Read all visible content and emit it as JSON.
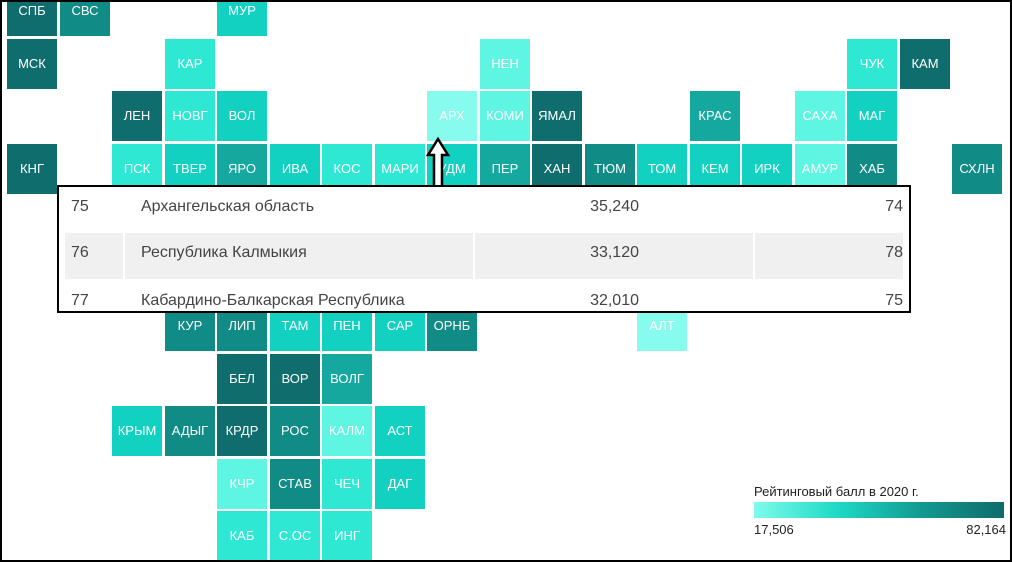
{
  "colors": {
    "very_light": "#86fbee",
    "light": "#5ef5e2",
    "aqua": "#2ee8d4",
    "mid": "#12d1c0",
    "teal": "#14a89f",
    "dark": "#108b86",
    "darkest": "#0f6e6d"
  },
  "regions": [
    {
      "label": "СПБ",
      "col": 0,
      "row": 0,
      "shade": "darkest"
    },
    {
      "label": "СВС",
      "col": 1,
      "row": 0,
      "shade": "dark"
    },
    {
      "label": "МУР",
      "col": 4,
      "row": 0,
      "shade": "mid"
    },
    {
      "label": "МСК",
      "col": 0,
      "row": 1,
      "shade": "darkest"
    },
    {
      "label": "КАР",
      "col": 3,
      "row": 1,
      "shade": "aqua"
    },
    {
      "label": "НЕН",
      "col": 9,
      "row": 1,
      "shade": "light"
    },
    {
      "label": "ЧУК",
      "col": 16,
      "row": 1,
      "shade": "aqua"
    },
    {
      "label": "КАМ",
      "col": 17,
      "row": 1,
      "shade": "darkest"
    },
    {
      "label": "ЛЕН",
      "col": 2,
      "row": 2,
      "shade": "darkest"
    },
    {
      "label": "НОВГ",
      "col": 3,
      "row": 2,
      "shade": "aqua"
    },
    {
      "label": "ВОЛ",
      "col": 4,
      "row": 2,
      "shade": "mid"
    },
    {
      "label": "АРХ",
      "col": 8,
      "row": 2,
      "shade": "very_light"
    },
    {
      "label": "КОМИ",
      "col": 9,
      "row": 2,
      "shade": "light"
    },
    {
      "label": "ЯМАЛ",
      "col": 10,
      "row": 2,
      "shade": "darkest"
    },
    {
      "label": "КРАС",
      "col": 13,
      "row": 2,
      "shade": "teal"
    },
    {
      "label": "САХА",
      "col": 15,
      "row": 2,
      "shade": "light"
    },
    {
      "label": "МАГ",
      "col": 16,
      "row": 2,
      "shade": "mid"
    },
    {
      "label": "КНГ",
      "col": 0,
      "row": 3,
      "shade": "darkest"
    },
    {
      "label": "ПСК",
      "col": 2,
      "row": 3,
      "shade": "aqua"
    },
    {
      "label": "ТВЕР",
      "col": 3,
      "row": 3,
      "shade": "mid"
    },
    {
      "label": "ЯРО",
      "col": 4,
      "row": 3,
      "shade": "teal"
    },
    {
      "label": "ИВА",
      "col": 5,
      "row": 3,
      "shade": "mid"
    },
    {
      "label": "КОС",
      "col": 6,
      "row": 3,
      "shade": "aqua"
    },
    {
      "label": "МАРИ",
      "col": 7,
      "row": 3,
      "shade": "aqua"
    },
    {
      "label": "УДМ",
      "col": 8,
      "row": 3,
      "shade": "mid"
    },
    {
      "label": "ПЕР",
      "col": 9,
      "row": 3,
      "shade": "teal"
    },
    {
      "label": "ХАН",
      "col": 10,
      "row": 3,
      "shade": "darkest"
    },
    {
      "label": "ТЮМ",
      "col": 11,
      "row": 3,
      "shade": "dark"
    },
    {
      "label": "ТОМ",
      "col": 12,
      "row": 3,
      "shade": "mid"
    },
    {
      "label": "КЕМ",
      "col": 13,
      "row": 3,
      "shade": "mid"
    },
    {
      "label": "ИРК",
      "col": 14,
      "row": 3,
      "shade": "mid"
    },
    {
      "label": "АМУР",
      "col": 15,
      "row": 3,
      "shade": "light"
    },
    {
      "label": "ХАБ",
      "col": 16,
      "row": 3,
      "shade": "dark"
    },
    {
      "label": "СХЛН",
      "col": 18,
      "row": 3,
      "shade": "dark"
    },
    {
      "label": "КУР",
      "col": 3,
      "row": 6,
      "shade": "dark"
    },
    {
      "label": "ЛИП",
      "col": 4,
      "row": 6,
      "shade": "dark"
    },
    {
      "label": "ТАМ",
      "col": 5,
      "row": 6,
      "shade": "mid"
    },
    {
      "label": "ПЕН",
      "col": 6,
      "row": 6,
      "shade": "mid"
    },
    {
      "label": "САР",
      "col": 7,
      "row": 6,
      "shade": "mid"
    },
    {
      "label": "ОРНБ",
      "col": 8,
      "row": 6,
      "shade": "dark"
    },
    {
      "label": "АЛТ",
      "col": 12,
      "row": 6,
      "shade": "very_light"
    },
    {
      "label": "БЕЛ",
      "col": 4,
      "row": 7,
      "shade": "darkest"
    },
    {
      "label": "ВОР",
      "col": 5,
      "row": 7,
      "shade": "darkest"
    },
    {
      "label": "ВОЛГ",
      "col": 6,
      "row": 7,
      "shade": "teal"
    },
    {
      "label": "КРЫМ",
      "col": 2,
      "row": 8,
      "shade": "mid"
    },
    {
      "label": "АДЫГ",
      "col": 3,
      "row": 8,
      "shade": "dark"
    },
    {
      "label": "КРДР",
      "col": 4,
      "row": 8,
      "shade": "darkest"
    },
    {
      "label": "РОС",
      "col": 5,
      "row": 8,
      "shade": "dark"
    },
    {
      "label": "КАЛМ",
      "col": 6,
      "row": 8,
      "shade": "light"
    },
    {
      "label": "АСТ",
      "col": 7,
      "row": 8,
      "shade": "mid"
    },
    {
      "label": "КЧР",
      "col": 4,
      "row": 9,
      "shade": "light"
    },
    {
      "label": "СТАВ",
      "col": 5,
      "row": 9,
      "shade": "dark"
    },
    {
      "label": "ЧЕЧ",
      "col": 6,
      "row": 9,
      "shade": "aqua"
    },
    {
      "label": "ДАГ",
      "col": 7,
      "row": 9,
      "shade": "mid"
    },
    {
      "label": "КАБ",
      "col": 4,
      "row": 10,
      "shade": "aqua"
    },
    {
      "label": "С.ОС",
      "col": 5,
      "row": 10,
      "shade": "aqua"
    },
    {
      "label": "ИНГ",
      "col": 6,
      "row": 10,
      "shade": "aqua"
    }
  ],
  "table": {
    "rows": [
      {
        "rank": "75",
        "name": "Архангельская область",
        "score": "35,240",
        "place": "74"
      },
      {
        "rank": "76",
        "name": "Республика Калмыкия",
        "score": "33,120",
        "place": "78"
      },
      {
        "rank": "77",
        "name": "Кабардино-Балкарская Республика",
        "score": "32,010",
        "place": "75"
      }
    ]
  },
  "legend": {
    "title": "Рейтинговый балл в 2020 г.",
    "min": "17,506",
    "max": "82,164",
    "color_low": "#7ffbeb",
    "color_high": "#0f6b6b"
  }
}
